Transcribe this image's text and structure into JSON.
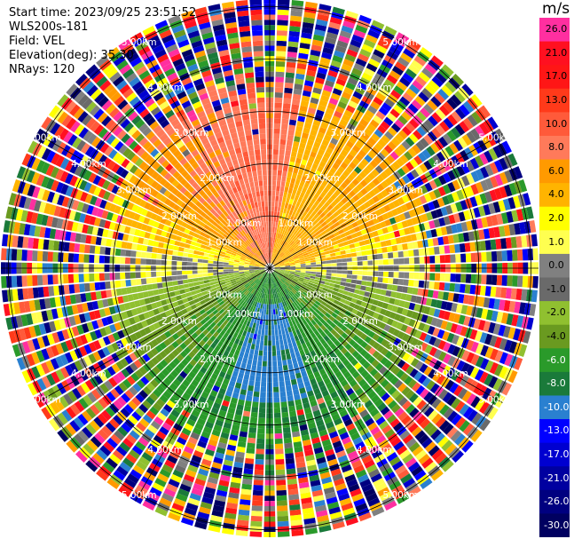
{
  "header": {
    "start_time": "Start time: 2023/09/25 23:51:52",
    "instrument": "WLS200s-181",
    "field": "Field: VEL",
    "elevation": "Elevation(deg): 35.30",
    "nrays": "NRays: 120"
  },
  "chart_data": {
    "type": "heatmap",
    "projection": "polar",
    "field": "VEL",
    "units": "m/s",
    "elevation_deg": 35.3,
    "n_rays": 120,
    "range_rings_km": [
      1.0,
      2.0,
      3.0,
      4.0,
      5.0
    ],
    "ring_labels": [
      "1.00km",
      "2.00km",
      "3.00km",
      "4.00km",
      "5.00km"
    ],
    "colorbar": {
      "title": "m/s",
      "ticks": [
        "26.0",
        "21.0",
        "17.0",
        "13.0",
        "10.0",
        "8.0",
        "6.0",
        "4.0",
        "2.0",
        "1.0",
        "0.0",
        "-1.0",
        "-2.0",
        "-4.0",
        "-6.0",
        "-8.0",
        "-10.0",
        "-13.0",
        "-17.0",
        "-21.0",
        "-26.0",
        "-30.0"
      ],
      "colors": [
        "#ff2fa0",
        "#ff1020",
        "#ff1616",
        "#ff3a1a",
        "#ff5a3a",
        "#ff7a5a",
        "#ff9a00",
        "#ffb400",
        "#ffff00",
        "#ffff50",
        "#808080",
        "#6a6a6a",
        "#90c030",
        "#6a9a20",
        "#2a9a2a",
        "#1a7a3a",
        "#2a80d0",
        "#0000ff",
        "#0000d0",
        "#0000a0",
        "#000080",
        "#000060"
      ]
    },
    "near_field_pattern": "positive (orange/red) toward top, yellow toward right, gray near zero on east-west axis, green and blue negative toward bottom; outer rings noisy"
  }
}
